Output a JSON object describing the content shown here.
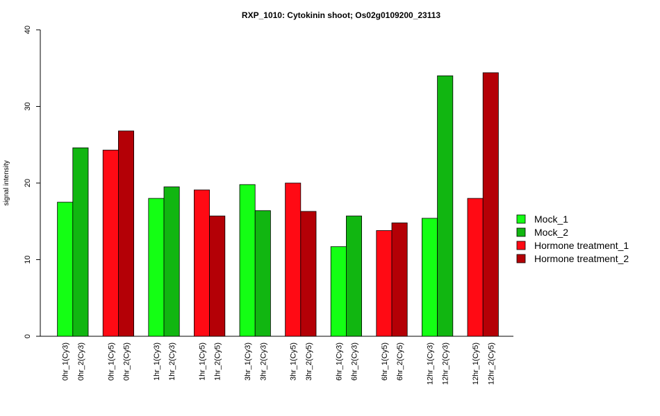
{
  "chart_data": {
    "type": "bar",
    "title": "RXP_1010: Cytokinin shoot; Os02g0109200_23113",
    "xlabel": "",
    "ylabel": "signal intensity",
    "ylim": [
      0,
      40
    ],
    "yticks": [
      0,
      10,
      20,
      30,
      40
    ],
    "grid": false,
    "legend_position": "right",
    "categories": [
      "0hr_1(Cy3)",
      "0hr_2(Cy3)",
      "0hr_1(Cy5)",
      "0hr_2(Cy5)",
      "1hr_1(Cy3)",
      "1hr_2(Cy3)",
      "1hr_1(Cy5)",
      "1hr_2(Cy5)",
      "3hr_1(Cy3)",
      "3hr_2(Cy3)",
      "3hr_1(Cy5)",
      "3hr_2(Cy5)",
      "6hr_1(Cy3)",
      "6hr_2(Cy3)",
      "6hr_1(Cy5)",
      "6hr_2(Cy5)",
      "12hr_1(Cy3)",
      "12hr_2(Cy3)",
      "12hr_1(Cy5)",
      "12hr_2(Cy5)"
    ],
    "values": [
      17.5,
      24.6,
      24.3,
      26.8,
      18.0,
      19.5,
      19.1,
      15.7,
      19.8,
      16.4,
      20.0,
      16.3,
      11.7,
      15.7,
      13.8,
      14.8,
      15.4,
      34.0,
      18.0,
      34.4
    ],
    "bar_series": [
      0,
      1,
      2,
      3,
      0,
      1,
      2,
      3,
      0,
      1,
      2,
      3,
      0,
      1,
      2,
      3,
      0,
      1,
      2,
      3
    ],
    "series": [
      {
        "name": "Mock_1",
        "color": "#14ff14"
      },
      {
        "name": "Mock_2",
        "color": "#11b611"
      },
      {
        "name": "Hormone treatment_1",
        "color": "#ff0a14"
      },
      {
        "name": "Hormone treatment_2",
        "color": "#b40006"
      }
    ]
  }
}
